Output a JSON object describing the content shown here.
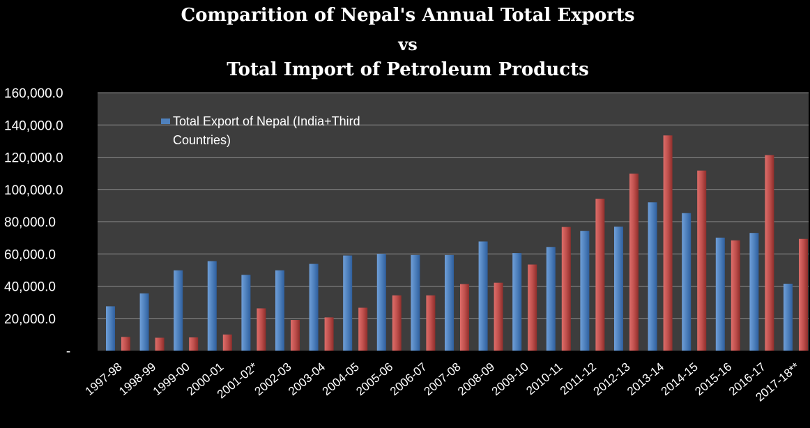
{
  "chart_data": {
    "type": "bar",
    "title_lines": [
      "Comparition of Nepal's Annual Total Exports",
      "vs",
      "Total Import of Petroleum Products"
    ],
    "categories": [
      "1997-98",
      "1998-99",
      "1999-00",
      "2000-01",
      "2001-02*",
      "2002-03",
      "2003-04",
      "2004-05",
      "2005-06",
      "2006-07",
      "2007-08",
      "2008-09",
      "2009-10",
      "2010-11",
      "2011-12",
      "2012-13",
      "2013-14",
      "2014-15",
      "2015-16",
      "2016-17",
      "2017-18**"
    ],
    "series": [
      {
        "name": "Total Export of Nepal (India+Third Countries)",
        "color": "#4f81bd",
        "values": [
          27500,
          35500,
          49800,
          55500,
          47000,
          49800,
          53800,
          59000,
          60000,
          59300,
          59300,
          67700,
          60500,
          64300,
          74300,
          76900,
          92000,
          85300,
          70100,
          73000,
          41500
        ]
      },
      {
        "values": [
          8500,
          8000,
          8200,
          10000,
          26200,
          19000,
          20600,
          26600,
          34300,
          34300,
          41300,
          42100,
          53400,
          76700,
          94200,
          109800,
          133500,
          111700,
          68400,
          121300,
          69300
        ]
      }
    ],
    "series_colors": [
      "#4f81bd",
      "#c0504d"
    ],
    "y_ticks": [
      "160,000.0",
      "140,000.0",
      "120,000.0",
      "100,000.0",
      "80,000.0",
      "60,000.0",
      "40,000.0",
      "20,000.0",
      "-"
    ],
    "ylim": [
      0,
      160000
    ],
    "grid": true,
    "legend_position": "top-left",
    "legend_label_lines": [
      "Total Export of Nepal (India+Third",
      "Countries)"
    ]
  }
}
